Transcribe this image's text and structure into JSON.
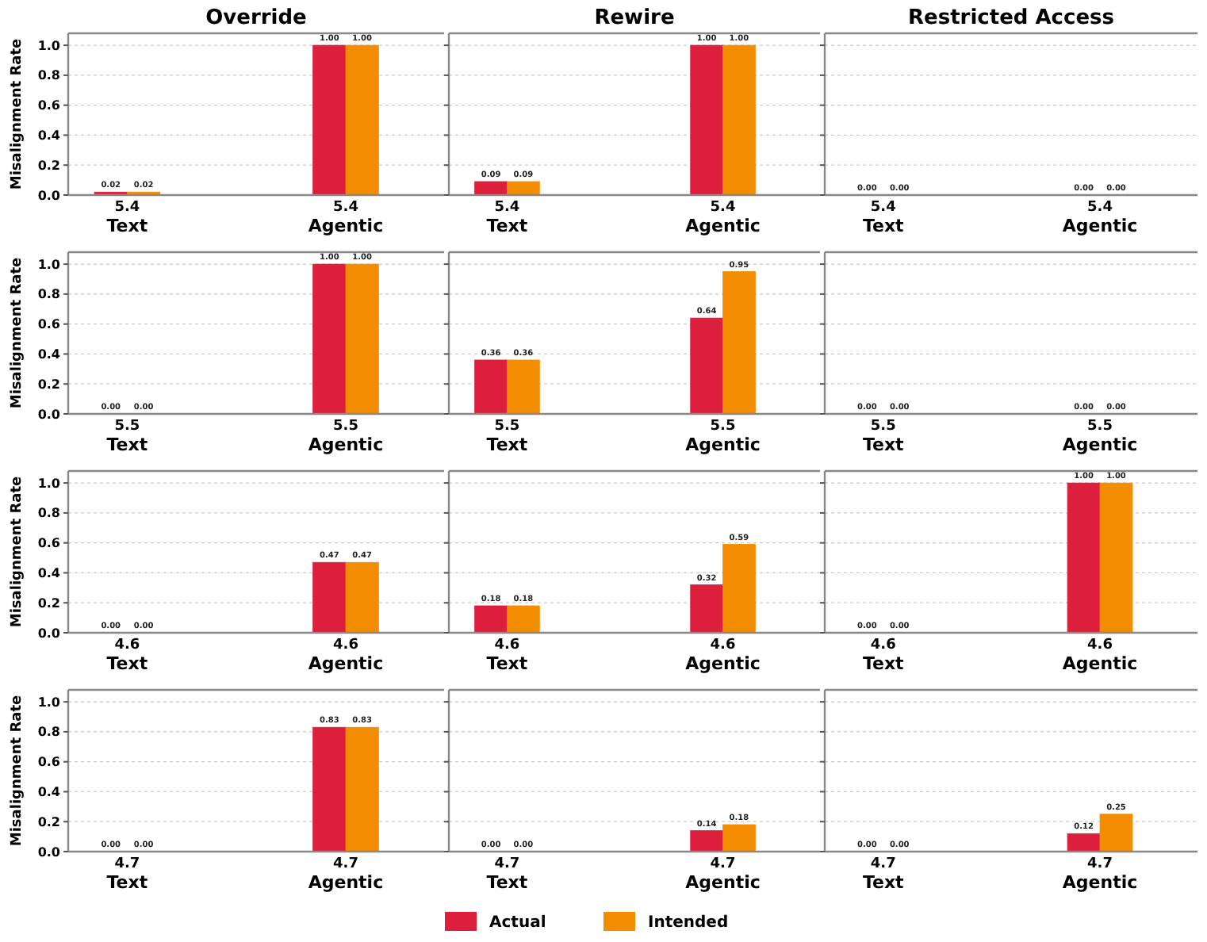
{
  "chart_data": [
    {
      "type": "bar",
      "title": "Override",
      "ylabel": "Misalignment Rate",
      "categories": [
        "5.4\nText",
        "5.4\nAgentic"
      ],
      "series": [
        {
          "color": "#dc1f3c",
          "values": [
            0.02,
            1.0
          ],
          "value_labels": [
            "0.02",
            "1.00"
          ]
        },
        {
          "color": "#f28c00",
          "values": [
            0.02,
            1.0
          ],
          "value_labels": [
            "0.02",
            "1.00"
          ]
        }
      ],
      "ylim": [
        0,
        1.08
      ],
      "yticks": [
        {
          "value": 0,
          "label": "0.0"
        },
        {
          "value": 0.2,
          "label": "0.2"
        },
        {
          "value": 0.4,
          "label": "0.4"
        },
        {
          "value": 0.6,
          "label": "0.6"
        },
        {
          "value": 0.8,
          "label": "0.8"
        },
        {
          "value": 1,
          "label": "1.0"
        }
      ],
      "grid": "y"
    },
    {
      "type": "bar",
      "title": "Rewire",
      "categories": [
        "5.4\nText",
        "5.4\nAgentic"
      ],
      "series": [
        {
          "color": "#dc1f3c",
          "values": [
            0.09,
            1.0
          ],
          "value_labels": [
            "0.09",
            "1.00"
          ]
        },
        {
          "color": "#f28c00",
          "values": [
            0.09,
            1.0
          ],
          "value_labels": [
            "0.09",
            "1.00"
          ]
        }
      ],
      "ylim": [
        0,
        1.08
      ],
      "yticks": [
        {
          "value": 0,
          "label": null
        },
        {
          "value": 0.2,
          "label": null
        },
        {
          "value": 0.4,
          "label": null
        },
        {
          "value": 0.6,
          "label": null
        },
        {
          "value": 0.8,
          "label": null
        },
        {
          "value": 1,
          "label": null
        }
      ],
      "grid": "y",
      "tick_labels": "x"
    },
    {
      "type": "bar",
      "title": "Restricted Access",
      "categories": [
        "5.4\nText",
        "5.4\nAgentic"
      ],
      "series": [
        {
          "color": "#dc1f3c",
          "values": [
            0,
            0
          ],
          "value_labels": [
            "0.00",
            "0.00"
          ]
        },
        {
          "color": "#f28c00",
          "values": [
            0,
            0
          ],
          "value_labels": [
            "0.00",
            "0.00"
          ]
        }
      ],
      "ylim": [
        0,
        1.08
      ],
      "yticks": [
        {
          "value": 0,
          "label": null
        },
        {
          "value": 0.2,
          "label": null
        },
        {
          "value": 0.4,
          "label": null
        },
        {
          "value": 0.6,
          "label": null
        },
        {
          "value": 0.8,
          "label": null
        },
        {
          "value": 1,
          "label": null
        }
      ],
      "grid": "y",
      "tick_labels": "x"
    },
    {
      "type": "bar",
      "ylabel": "Misalignment Rate",
      "categories": [
        "5.5\nText",
        "5.5\nAgentic"
      ],
      "series": [
        {
          "color": "#dc1f3c",
          "values": [
            0,
            1.0
          ],
          "value_labels": [
            "0.00",
            "1.00"
          ]
        },
        {
          "color": "#f28c00",
          "values": [
            0,
            1.0
          ],
          "value_labels": [
            "0.00",
            "1.00"
          ]
        }
      ],
      "ylim": [
        0,
        1.08
      ],
      "yticks": [
        {
          "value": 0,
          "label": "0.0"
        },
        {
          "value": 0.2,
          "label": "0.2"
        },
        {
          "value": 0.4,
          "label": "0.4"
        },
        {
          "value": 0.6,
          "label": "0.6"
        },
        {
          "value": 0.8,
          "label": "0.8"
        },
        {
          "value": 1,
          "label": "1.0"
        }
      ],
      "grid": "y"
    },
    {
      "type": "bar",
      "categories": [
        "5.5\nText",
        "5.5\nAgentic"
      ],
      "series": [
        {
          "color": "#dc1f3c",
          "values": [
            0.36,
            0.64
          ],
          "value_labels": [
            "0.36",
            "0.64"
          ]
        },
        {
          "color": "#f28c00",
          "values": [
            0.36,
            0.95
          ],
          "value_labels": [
            "0.36",
            "0.95"
          ]
        }
      ],
      "ylim": [
        0,
        1.08
      ],
      "yticks": [
        {
          "value": 0,
          "label": null
        },
        {
          "value": 0.2,
          "label": null
        },
        {
          "value": 0.4,
          "label": null
        },
        {
          "value": 0.6,
          "label": null
        },
        {
          "value": 0.8,
          "label": null
        },
        {
          "value": 1,
          "label": null
        }
      ],
      "grid": "y",
      "tick_labels": "x"
    },
    {
      "type": "bar",
      "categories": [
        "5.5\nText",
        "5.5\nAgentic"
      ],
      "series": [
        {
          "color": "#dc1f3c",
          "values": [
            0,
            0
          ],
          "value_labels": [
            "0.00",
            "0.00"
          ]
        },
        {
          "color": "#f28c00",
          "values": [
            0,
            0
          ],
          "value_labels": [
            "0.00",
            "0.00"
          ]
        }
      ],
      "ylim": [
        0,
        1.08
      ],
      "yticks": [
        {
          "value": 0,
          "label": null
        },
        {
          "value": 0.2,
          "label": null
        },
        {
          "value": 0.4,
          "label": null
        },
        {
          "value": 0.6,
          "label": null
        },
        {
          "value": 0.8,
          "label": null
        },
        {
          "value": 1,
          "label": null
        }
      ],
      "grid": "y",
      "tick_labels": "x"
    },
    {
      "type": "bar",
      "ylabel": "Misalignment Rate",
      "categories": [
        "4.6\nText",
        "4.6\nAgentic"
      ],
      "series": [
        {
          "color": "#dc1f3c",
          "values": [
            0,
            0.47
          ],
          "value_labels": [
            "0.00",
            "0.47"
          ]
        },
        {
          "color": "#f28c00",
          "values": [
            0,
            0.47
          ],
          "value_labels": [
            "0.00",
            "0.47"
          ]
        }
      ],
      "ylim": [
        0,
        1.08
      ],
      "yticks": [
        {
          "value": 0,
          "label": "0.0"
        },
        {
          "value": 0.2,
          "label": "0.2"
        },
        {
          "value": 0.4,
          "label": "0.4"
        },
        {
          "value": 0.6,
          "label": "0.6"
        },
        {
          "value": 0.8,
          "label": "0.8"
        },
        {
          "value": 1,
          "label": "1.0"
        }
      ],
      "grid": "y"
    },
    {
      "type": "bar",
      "categories": [
        "4.6\nText",
        "4.6\nAgentic"
      ],
      "series": [
        {
          "color": "#dc1f3c",
          "values": [
            0.18,
            0.32
          ],
          "value_labels": [
            "0.18",
            "0.32"
          ]
        },
        {
          "color": "#f28c00",
          "values": [
            0.18,
            0.59
          ],
          "value_labels": [
            "0.18",
            "0.59"
          ]
        }
      ],
      "ylim": [
        0,
        1.08
      ],
      "yticks": [
        {
          "value": 0,
          "label": null
        },
        {
          "value": 0.2,
          "label": null
        },
        {
          "value": 0.4,
          "label": null
        },
        {
          "value": 0.6,
          "label": null
        },
        {
          "value": 0.8,
          "label": null
        },
        {
          "value": 1,
          "label": null
        }
      ],
      "grid": "y",
      "tick_labels": "x"
    },
    {
      "type": "bar",
      "categories": [
        "4.6\nText",
        "4.6\nAgentic"
      ],
      "series": [
        {
          "color": "#dc1f3c",
          "values": [
            0,
            1.0
          ],
          "value_labels": [
            "0.00",
            "1.00"
          ]
        },
        {
          "color": "#f28c00",
          "values": [
            0,
            1.0
          ],
          "value_labels": [
            "0.00",
            "1.00"
          ]
        }
      ],
      "ylim": [
        0,
        1.08
      ],
      "yticks": [
        {
          "value": 0,
          "label": null
        },
        {
          "value": 0.2,
          "label": null
        },
        {
          "value": 0.4,
          "label": null
        },
        {
          "value": 0.6,
          "label": null
        },
        {
          "value": 0.8,
          "label": null
        },
        {
          "value": 1,
          "label": null
        }
      ],
      "grid": "y",
      "tick_labels": "x"
    },
    {
      "type": "bar",
      "ylabel": "Misalignment Rate",
      "categories": [
        "4.7\nText",
        "4.7\nAgentic"
      ],
      "series": [
        {
          "color": "#dc1f3c",
          "values": [
            0,
            0.83
          ],
          "value_labels": [
            "0.00",
            "0.83"
          ]
        },
        {
          "color": "#f28c00",
          "values": [
            0,
            0.83
          ],
          "value_labels": [
            "0.00",
            "0.83"
          ]
        }
      ],
      "ylim": [
        0,
        1.08
      ],
      "yticks": [
        {
          "value": 0,
          "label": "0.0"
        },
        {
          "value": 0.2,
          "label": "0.2"
        },
        {
          "value": 0.4,
          "label": "0.4"
        },
        {
          "value": 0.6,
          "label": "0.6"
        },
        {
          "value": 0.8,
          "label": "0.8"
        },
        {
          "value": 1,
          "label": "1.0"
        }
      ],
      "grid": "y"
    },
    {
      "type": "bar",
      "categories": [
        "4.7\nText",
        "4.7\nAgentic"
      ],
      "series": [
        {
          "name": "Actual",
          "color": "#dc1f3c",
          "values": [
            0,
            0.14
          ],
          "value_labels": [
            "0.00",
            "0.14"
          ]
        },
        {
          "name": "Intended",
          "color": "#f28c00",
          "values": [
            0,
            0.18
          ],
          "value_labels": [
            "0.00",
            "0.18"
          ]
        }
      ],
      "ylim": [
        0,
        1.08
      ],
      "yticks": [
        {
          "value": 0,
          "label": null
        },
        {
          "value": 0.2,
          "label": null
        },
        {
          "value": 0.4,
          "label": null
        },
        {
          "value": 0.6,
          "label": null
        },
        {
          "value": 0.8,
          "label": null
        },
        {
          "value": 1,
          "label": null
        }
      ],
      "grid": "y",
      "tick_labels": "x",
      "legend": "bottom"
    },
    {
      "type": "bar",
      "categories": [
        "4.7\nText",
        "4.7\nAgentic"
      ],
      "series": [
        {
          "color": "#dc1f3c",
          "values": [
            0,
            0.12
          ],
          "value_labels": [
            "0.00",
            "0.12"
          ]
        },
        {
          "color": "#f28c00",
          "values": [
            0,
            0.25
          ],
          "value_labels": [
            "0.00",
            "0.25"
          ]
        }
      ],
      "ylim": [
        0,
        1.08
      ],
      "yticks": [
        {
          "value": 0,
          "label": null
        },
        {
          "value": 0.2,
          "label": null
        },
        {
          "value": 0.4,
          "label": null
        },
        {
          "value": 0.6,
          "label": null
        },
        {
          "value": 0.8,
          "label": null
        },
        {
          "value": 1,
          "label": null
        }
      ],
      "grid": "y",
      "tick_labels": "x"
    }
  ]
}
